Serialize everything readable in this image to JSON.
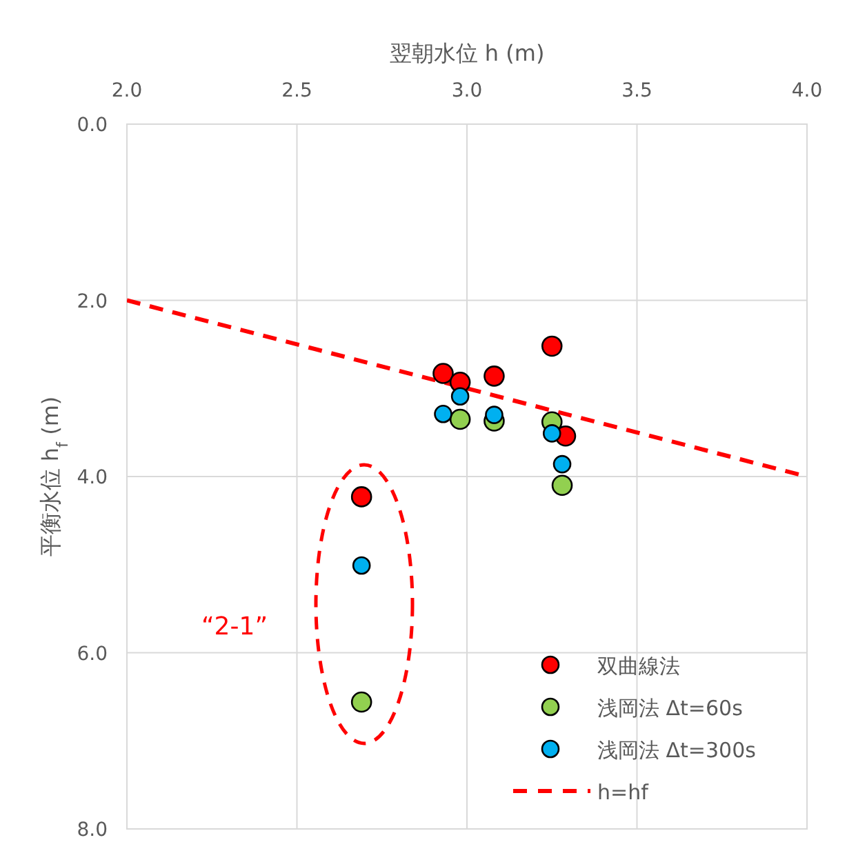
{
  "chart_data": {
    "type": "scatter",
    "xlabel": "翌朝水位 h (m)",
    "ylabel": "平衡水位 h$_{f}$ (m)",
    "xlim": [
      2.0,
      4.0
    ],
    "xticks": [
      {
        "value": 2,
        "label": "2.0"
      },
      {
        "value": 2.5,
        "label": "2.5"
      },
      {
        "value": 3,
        "label": "3.0"
      },
      {
        "value": 3.5,
        "label": "3.5"
      },
      {
        "value": 4,
        "label": "4.0"
      }
    ],
    "ylim": [
      8.0,
      0.0
    ],
    "yticks": [
      {
        "value": 0,
        "label": "0.0"
      },
      {
        "value": 2,
        "label": "2.0"
      },
      {
        "value": 4,
        "label": "4.0"
      },
      {
        "value": 6,
        "label": "6.0"
      },
      {
        "value": 8,
        "label": "8.0"
      }
    ],
    "grid": true,
    "legend": "bottom right",
    "marker": "circle",
    "series": [
      {
        "name": "双曲線法",
        "color": "#ff0000",
        "x": [
          2.93,
          2.98,
          3.08,
          3.25,
          3.29,
          2.69
        ],
        "values": [
          2.83,
          2.93,
          2.86,
          2.52,
          3.54,
          4.23
        ]
      },
      {
        "name": "浅岡法 Δt=60s",
        "color": "#92d050",
        "x": [
          2.98,
          3.08,
          3.25,
          3.28,
          2.69
        ],
        "values": [
          3.35,
          3.37,
          3.38,
          4.1,
          6.56
        ]
      },
      {
        "name": "浅岡法 Δt=300s",
        "color": "#00b0f0",
        "x": [
          2.98,
          2.93,
          3.08,
          3.25,
          3.28,
          2.69
        ],
        "values": [
          3.09,
          3.29,
          3.3,
          3.51,
          3.86,
          5.01
        ]
      },
      {
        "name": "h=hf",
        "type": "line",
        "color": "#ff0000",
        "line_style": "dashed",
        "marker": "none",
        "x": [
          2.0,
          4.0
        ],
        "values": [
          2.0,
          4.0
        ]
      }
    ],
    "annotations": [
      "“2-1”"
    ]
  }
}
